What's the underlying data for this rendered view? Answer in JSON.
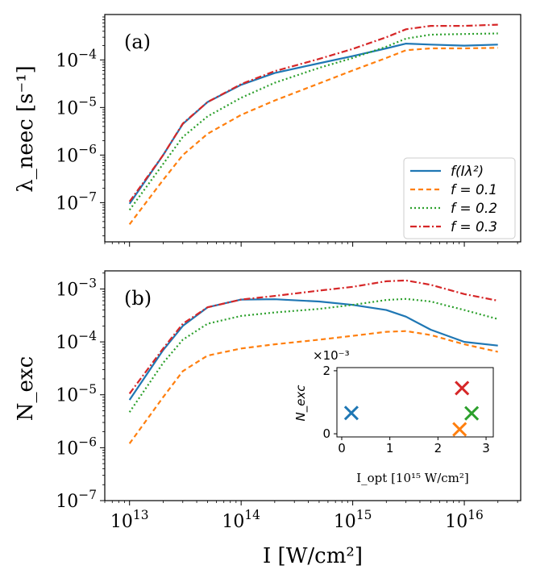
{
  "figure": {
    "xlabel": "I [W/cm²]",
    "xticks": [
      {
        "value": 10000000000000.0,
        "base": "10",
        "exp": "13"
      },
      {
        "value": 100000000000000.0,
        "base": "10",
        "exp": "14"
      },
      {
        "value": 1000000000000000.0,
        "base": "10",
        "exp": "15"
      },
      {
        "value": 1e+16,
        "base": "10",
        "exp": "16"
      }
    ]
  },
  "chart_data": [
    {
      "type": "line",
      "panel_label": "(a)",
      "ylabel": "λ_neec [s⁻¹]",
      "x_scale": "log",
      "y_scale": "log",
      "xlim": [
        6000000000000.0,
        3.2e+16
      ],
      "ylim": [
        1.5e-08,
        0.0009
      ],
      "yticks": [
        {
          "value": 1e-07,
          "base": "10",
          "exp": "−7"
        },
        {
          "value": 1e-06,
          "base": "10",
          "exp": "−6"
        },
        {
          "value": 1e-05,
          "base": "10",
          "exp": "−5"
        },
        {
          "value": 0.0001,
          "base": "10",
          "exp": "−4"
        }
      ],
      "legend_position": "lower-right",
      "series": [
        {
          "name": "f(Iλ²)",
          "color": "#1f77b4",
          "dash": "solid",
          "x": [
            10000000000000.0,
            20000000000000.0,
            30000000000000.0,
            50000000000000.0,
            100000000000000.0,
            200000000000000.0,
            500000000000000.0,
            1000000000000000.0,
            2000000000000000.0,
            3000000000000000.0,
            5000000000000000.0,
            1e+16,
            2e+16
          ],
          "y": [
            9.5e-08,
            1e-06,
            4.5e-06,
            1.3e-05,
            3e-05,
            5.3e-05,
            8.5e-05,
            0.00012,
            0.000175,
            0.00022,
            0.00021,
            0.0002,
            0.00021
          ]
        },
        {
          "name": "f = 0.1",
          "color": "#ff7f0e",
          "dash": "6,4",
          "x": [
            10000000000000.0,
            20000000000000.0,
            30000000000000.0,
            50000000000000.0,
            100000000000000.0,
            200000000000000.0,
            500000000000000.0,
            1000000000000000.0,
            2000000000000000.0,
            3000000000000000.0,
            5000000000000000.0,
            1e+16,
            2e+16
          ],
          "y": [
            3.5e-08,
            3e-07,
            1e-06,
            2.8e-06,
            7e-06,
            1.4e-05,
            3.2e-05,
            6e-05,
            0.00011,
            0.00016,
            0.000175,
            0.000175,
            0.00018
          ]
        },
        {
          "name": "f = 0.2",
          "color": "#2ca02c",
          "dash": "2,3",
          "x": [
            10000000000000.0,
            20000000000000.0,
            30000000000000.0,
            50000000000000.0,
            100000000000000.0,
            200000000000000.0,
            500000000000000.0,
            1000000000000000.0,
            2000000000000000.0,
            3000000000000000.0,
            5000000000000000.0,
            1e+16,
            2e+16
          ],
          "y": [
            7e-08,
            6.5e-07,
            2.4e-06,
            6.5e-06,
            1.6e-05,
            3.3e-05,
            6.8e-05,
            0.00011,
            0.00019,
            0.00028,
            0.00034,
            0.00035,
            0.00036
          ]
        },
        {
          "name": "f = 0.3",
          "color": "#d62728",
          "dash": "8,3,2,3",
          "x": [
            10000000000000.0,
            20000000000000.0,
            30000000000000.0,
            50000000000000.0,
            100000000000000.0,
            200000000000000.0,
            500000000000000.0,
            1000000000000000.0,
            2000000000000000.0,
            3000000000000000.0,
            5000000000000000.0,
            1e+16,
            2e+16
          ],
          "y": [
            1.05e-07,
            1e-06,
            4.6e-06,
            1.3e-05,
            3.1e-05,
            5.8e-05,
            0.000105,
            0.00017,
            0.0003,
            0.00044,
            0.00052,
            0.00052,
            0.00055
          ]
        }
      ]
    },
    {
      "type": "line",
      "panel_label": "(b)",
      "ylabel": "N_exc",
      "x_scale": "log",
      "y_scale": "log",
      "xlim": [
        6000000000000.0,
        3.2e+16
      ],
      "ylim": [
        1e-07,
        0.0022
      ],
      "yticks": [
        {
          "value": 1e-07,
          "base": "10",
          "exp": "−7"
        },
        {
          "value": 1e-06,
          "base": "10",
          "exp": "−6"
        },
        {
          "value": 1e-05,
          "base": "10",
          "exp": "−5"
        },
        {
          "value": 0.0001,
          "base": "10",
          "exp": "−4"
        },
        {
          "value": 0.001,
          "base": "10",
          "exp": "−3"
        }
      ],
      "series": [
        {
          "name": "f(Iλ²)",
          "color": "#1f77b4",
          "dash": "solid",
          "x": [
            10000000000000.0,
            20000000000000.0,
            30000000000000.0,
            50000000000000.0,
            100000000000000.0,
            200000000000000.0,
            500000000000000.0,
            1000000000000000.0,
            2000000000000000.0,
            3000000000000000.0,
            5000000000000000.0,
            1e+16,
            2e+16
          ],
          "y": [
            8e-06,
            7e-05,
            0.0002,
            0.00045,
            0.00063,
            0.00064,
            0.00058,
            0.0005,
            0.0004,
            0.0003,
            0.00017,
            0.0001,
            8.5e-05
          ]
        },
        {
          "name": "f = 0.1",
          "color": "#ff7f0e",
          "dash": "6,4",
          "x": [
            10000000000000.0,
            20000000000000.0,
            30000000000000.0,
            50000000000000.0,
            100000000000000.0,
            200000000000000.0,
            500000000000000.0,
            1000000000000000.0,
            2000000000000000.0,
            3000000000000000.0,
            5000000000000000.0,
            1e+16,
            2e+16
          ],
          "y": [
            1.2e-06,
            9e-06,
            2.8e-05,
            5.5e-05,
            7.5e-05,
            9e-05,
            0.00011,
            0.00013,
            0.000155,
            0.00016,
            0.000135,
            9e-05,
            6.5e-05
          ]
        },
        {
          "name": "f = 0.2",
          "color": "#2ca02c",
          "dash": "2,3",
          "x": [
            10000000000000.0,
            20000000000000.0,
            30000000000000.0,
            50000000000000.0,
            100000000000000.0,
            200000000000000.0,
            500000000000000.0,
            1000000000000000.0,
            2000000000000000.0,
            3000000000000000.0,
            5000000000000000.0,
            1e+16,
            2e+16
          ],
          "y": [
            4.7e-06,
            4e-05,
            0.00011,
            0.00022,
            0.00031,
            0.00036,
            0.00042,
            0.0005,
            0.00062,
            0.00065,
            0.00058,
            0.0004,
            0.00027
          ]
        },
        {
          "name": "f = 0.3",
          "color": "#d62728",
          "dash": "8,3,2,3",
          "x": [
            10000000000000.0,
            20000000000000.0,
            30000000000000.0,
            50000000000000.0,
            100000000000000.0,
            200000000000000.0,
            500000000000000.0,
            1000000000000000.0,
            2000000000000000.0,
            3000000000000000.0,
            5000000000000000.0,
            1e+16,
            2e+16
          ],
          "y": [
            1.05e-05,
            7.5e-05,
            0.00022,
            0.00045,
            0.00063,
            0.00074,
            0.00093,
            0.0011,
            0.0014,
            0.00145,
            0.0012,
            0.0008,
            0.0006
          ]
        }
      ]
    },
    {
      "type": "scatter",
      "panel_label": "",
      "xlabel": "I_opt [10¹⁵ W/cm²]",
      "ylabel": "N_exc",
      "y_multiplier": "×10⁻³",
      "xlim": [
        -0.1,
        3.15
      ],
      "ylim": [
        -0.1,
        2.1
      ],
      "xticks": [
        "0",
        "1",
        "2",
        "3"
      ],
      "yticks": [
        "0",
        "2"
      ],
      "marker": "x",
      "points": [
        {
          "series": "f(Iλ²)",
          "color": "#1f77b4",
          "x": 0.2,
          "y": 0.66
        },
        {
          "series": "f = 0.1",
          "color": "#ff7f0e",
          "x": 2.45,
          "y": 0.14
        },
        {
          "series": "f = 0.2",
          "color": "#2ca02c",
          "x": 2.7,
          "y": 0.65
        },
        {
          "series": "f = 0.3",
          "color": "#d62728",
          "x": 2.5,
          "y": 1.45
        }
      ]
    }
  ]
}
